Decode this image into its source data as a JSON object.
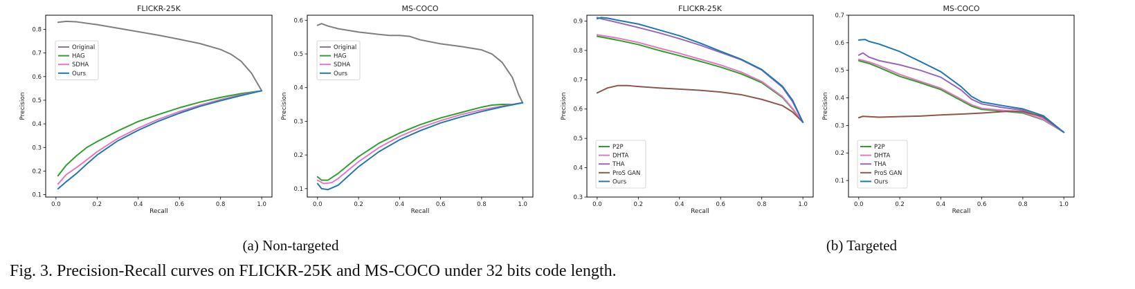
{
  "figure": {
    "caption": "Fig. 3.  Precision-Recall curves on FLICKR-25K and MS-COCO under 32 bits code length.",
    "subcaptions": [
      "(a)  Non-targeted",
      "(b)  Targeted"
    ]
  },
  "colors": {
    "Original": "#7f7f7f",
    "HAG": "#2ca02c",
    "P2P": "#2ca02c",
    "SDHA": "#e377c2",
    "DHTA": "#e377c2",
    "THA": "#9467bd",
    "ProS GAN": "#8c564b",
    "Ours": "#1f77b4"
  },
  "chart_data": [
    {
      "type": "line",
      "title": "FLICKR-25K",
      "xlabel": "Recall",
      "ylabel": "Precision",
      "xlim": [
        -0.05,
        1.05
      ],
      "ylim": [
        0.09,
        0.86
      ],
      "xticks": [
        "0.0",
        "0.2",
        "0.4",
        "0.6",
        "0.8",
        "1.0"
      ],
      "yticks": [
        "0.1",
        "0.2",
        "0.3",
        "0.4",
        "0.5",
        "0.6",
        "0.7",
        "0.8"
      ],
      "legend": "upper-left-mid",
      "series": [
        {
          "name": "Original",
          "x": [
            0.01,
            0.05,
            0.1,
            0.2,
            0.3,
            0.4,
            0.5,
            0.6,
            0.7,
            0.8,
            0.85,
            0.9,
            0.95,
            1.0
          ],
          "y": [
            0.83,
            0.834,
            0.832,
            0.82,
            0.805,
            0.79,
            0.775,
            0.758,
            0.74,
            0.715,
            0.695,
            0.665,
            0.615,
            0.54
          ]
        },
        {
          "name": "HAG",
          "x": [
            0.01,
            0.05,
            0.1,
            0.15,
            0.2,
            0.3,
            0.4,
            0.5,
            0.6,
            0.7,
            0.8,
            0.9,
            1.0
          ],
          "y": [
            0.18,
            0.225,
            0.265,
            0.3,
            0.325,
            0.37,
            0.41,
            0.44,
            0.468,
            0.492,
            0.512,
            0.528,
            0.54
          ]
        },
        {
          "name": "SDHA",
          "x": [
            0.01,
            0.05,
            0.1,
            0.15,
            0.2,
            0.3,
            0.4,
            0.5,
            0.6,
            0.7,
            0.8,
            0.9,
            1.0
          ],
          "y": [
            0.145,
            0.185,
            0.215,
            0.248,
            0.282,
            0.338,
            0.382,
            0.42,
            0.452,
            0.479,
            0.503,
            0.523,
            0.54
          ]
        },
        {
          "name": "Ours",
          "x": [
            0.01,
            0.05,
            0.1,
            0.15,
            0.2,
            0.3,
            0.4,
            0.5,
            0.6,
            0.7,
            0.8,
            0.9,
            1.0
          ],
          "y": [
            0.125,
            0.155,
            0.19,
            0.23,
            0.268,
            0.328,
            0.373,
            0.412,
            0.445,
            0.474,
            0.498,
            0.52,
            0.54
          ]
        }
      ]
    },
    {
      "type": "line",
      "title": "MS-COCO",
      "xlabel": "Recall",
      "ylabel": "Precision",
      "xlim": [
        -0.05,
        1.05
      ],
      "ylim": [
        0.075,
        0.615
      ],
      "xticks": [
        "0.0",
        "0.2",
        "0.4",
        "0.6",
        "0.8",
        "1.0"
      ],
      "yticks": [
        "0.1",
        "0.2",
        "0.3",
        "0.4",
        "0.5",
        "0.6"
      ],
      "legend": "upper-left-mid",
      "series": [
        {
          "name": "Original",
          "x": [
            0.0,
            0.02,
            0.05,
            0.1,
            0.2,
            0.3,
            0.35,
            0.4,
            0.45,
            0.5,
            0.6,
            0.7,
            0.8,
            0.85,
            0.9,
            0.95,
            0.98,
            1.0
          ],
          "y": [
            0.585,
            0.59,
            0.583,
            0.575,
            0.565,
            0.558,
            0.555,
            0.555,
            0.552,
            0.542,
            0.53,
            0.522,
            0.512,
            0.5,
            0.475,
            0.43,
            0.38,
            0.355
          ]
        },
        {
          "name": "HAG",
          "x": [
            0.0,
            0.02,
            0.05,
            0.1,
            0.2,
            0.3,
            0.4,
            0.5,
            0.6,
            0.7,
            0.8,
            0.85,
            0.9,
            0.95,
            1.0
          ],
          "y": [
            0.135,
            0.125,
            0.125,
            0.145,
            0.195,
            0.235,
            0.265,
            0.29,
            0.31,
            0.326,
            0.342,
            0.348,
            0.35,
            0.35,
            0.355
          ]
        },
        {
          "name": "SDHA",
          "x": [
            0.0,
            0.03,
            0.07,
            0.1,
            0.2,
            0.3,
            0.4,
            0.5,
            0.6,
            0.7,
            0.8,
            0.9,
            1.0
          ],
          "y": [
            0.125,
            0.115,
            0.118,
            0.13,
            0.18,
            0.222,
            0.255,
            0.281,
            0.302,
            0.32,
            0.334,
            0.345,
            0.355
          ]
        },
        {
          "name": "Ours",
          "x": [
            0.0,
            0.02,
            0.05,
            0.1,
            0.2,
            0.3,
            0.4,
            0.5,
            0.6,
            0.7,
            0.8,
            0.9,
            1.0
          ],
          "y": [
            0.115,
            0.1,
            0.097,
            0.11,
            0.165,
            0.21,
            0.245,
            0.272,
            0.295,
            0.313,
            0.329,
            0.343,
            0.355
          ]
        }
      ]
    },
    {
      "type": "line",
      "title": "FLICKR-25K",
      "xlabel": "Recall",
      "ylabel": "Precision",
      "xlim": [
        -0.05,
        1.05
      ],
      "ylim": [
        0.3,
        0.92
      ],
      "xticks": [
        "0.0",
        "0.2",
        "0.4",
        "0.6",
        "0.8",
        "1.0"
      ],
      "yticks": [
        "0.3",
        "0.4",
        "0.5",
        "0.6",
        "0.7",
        "0.8",
        "0.9"
      ],
      "legend": "lower-left",
      "series": [
        {
          "name": "P2P",
          "x": [
            0.0,
            0.1,
            0.2,
            0.3,
            0.4,
            0.5,
            0.6,
            0.7,
            0.8,
            0.9,
            0.95,
            1.0
          ],
          "y": [
            0.848,
            0.835,
            0.82,
            0.8,
            0.782,
            0.763,
            0.743,
            0.72,
            0.69,
            0.64,
            0.6,
            0.555
          ]
        },
        {
          "name": "DHTA",
          "x": [
            0.0,
            0.1,
            0.2,
            0.3,
            0.4,
            0.5,
            0.6,
            0.7,
            0.8,
            0.9,
            0.95,
            1.0
          ],
          "y": [
            0.853,
            0.842,
            0.827,
            0.808,
            0.79,
            0.77,
            0.75,
            0.726,
            0.694,
            0.643,
            0.602,
            0.555
          ]
        },
        {
          "name": "THA",
          "x": [
            0.0,
            0.02,
            0.1,
            0.2,
            0.3,
            0.4,
            0.5,
            0.6,
            0.7,
            0.8,
            0.9,
            0.95,
            1.0
          ],
          "y": [
            0.912,
            0.908,
            0.895,
            0.878,
            0.86,
            0.84,
            0.818,
            0.793,
            0.768,
            0.733,
            0.675,
            0.625,
            0.555
          ]
        },
        {
          "name": "ProS GAN",
          "x": [
            0.0,
            0.05,
            0.1,
            0.15,
            0.2,
            0.3,
            0.4,
            0.5,
            0.6,
            0.7,
            0.8,
            0.9,
            0.95,
            1.0
          ],
          "y": [
            0.655,
            0.672,
            0.68,
            0.68,
            0.677,
            0.672,
            0.668,
            0.664,
            0.658,
            0.649,
            0.633,
            0.612,
            0.59,
            0.555
          ]
        },
        {
          "name": "Ours",
          "x": [
            0.0,
            0.02,
            0.05,
            0.1,
            0.2,
            0.3,
            0.4,
            0.5,
            0.6,
            0.7,
            0.8,
            0.9,
            0.95,
            1.0
          ],
          "y": [
            0.908,
            0.912,
            0.91,
            0.903,
            0.89,
            0.87,
            0.85,
            0.825,
            0.797,
            0.77,
            0.735,
            0.678,
            0.63,
            0.555
          ]
        }
      ]
    },
    {
      "type": "line",
      "title": "MS-COCO",
      "xlabel": "Recall",
      "ylabel": "Precision",
      "xlim": [
        -0.05,
        1.05
      ],
      "ylim": [
        0.04,
        0.7
      ],
      "xticks": [
        "0.0",
        "0.2",
        "0.4",
        "0.6",
        "0.8",
        "1.0"
      ],
      "yticks": [
        "0.1",
        "0.2",
        "0.3",
        "0.4",
        "0.5",
        "0.6",
        "0.7"
      ],
      "legend": "lower-left",
      "series": [
        {
          "name": "P2P",
          "x": [
            0.0,
            0.05,
            0.1,
            0.2,
            0.3,
            0.4,
            0.5,
            0.55,
            0.6,
            0.7,
            0.8,
            0.9,
            1.0
          ],
          "y": [
            0.535,
            0.525,
            0.51,
            0.478,
            0.455,
            0.43,
            0.39,
            0.37,
            0.358,
            0.352,
            0.345,
            0.32,
            0.275
          ]
        },
        {
          "name": "DHTA",
          "x": [
            0.0,
            0.05,
            0.1,
            0.2,
            0.3,
            0.4,
            0.5,
            0.55,
            0.6,
            0.7,
            0.8,
            0.9,
            1.0
          ],
          "y": [
            0.54,
            0.53,
            0.517,
            0.485,
            0.46,
            0.435,
            0.395,
            0.375,
            0.362,
            0.355,
            0.348,
            0.322,
            0.275
          ]
        },
        {
          "name": "THA",
          "x": [
            0.0,
            0.02,
            0.05,
            0.1,
            0.2,
            0.3,
            0.4,
            0.5,
            0.55,
            0.6,
            0.7,
            0.8,
            0.9,
            1.0
          ],
          "y": [
            0.555,
            0.563,
            0.548,
            0.535,
            0.52,
            0.5,
            0.475,
            0.428,
            0.395,
            0.378,
            0.365,
            0.355,
            0.328,
            0.275
          ]
        },
        {
          "name": "ProS GAN",
          "x": [
            0.0,
            0.02,
            0.1,
            0.2,
            0.3,
            0.4,
            0.5,
            0.6,
            0.7,
            0.75,
            0.8,
            0.9,
            1.0
          ],
          "y": [
            0.328,
            0.333,
            0.33,
            0.332,
            0.334,
            0.338,
            0.341,
            0.345,
            0.35,
            0.352,
            0.35,
            0.332,
            0.275
          ]
        },
        {
          "name": "Ours",
          "x": [
            0.0,
            0.03,
            0.05,
            0.1,
            0.2,
            0.3,
            0.4,
            0.5,
            0.55,
            0.6,
            0.7,
            0.8,
            0.9,
            1.0
          ],
          "y": [
            0.61,
            0.612,
            0.605,
            0.595,
            0.568,
            0.532,
            0.495,
            0.44,
            0.405,
            0.385,
            0.372,
            0.36,
            0.335,
            0.275
          ]
        }
      ]
    }
  ]
}
